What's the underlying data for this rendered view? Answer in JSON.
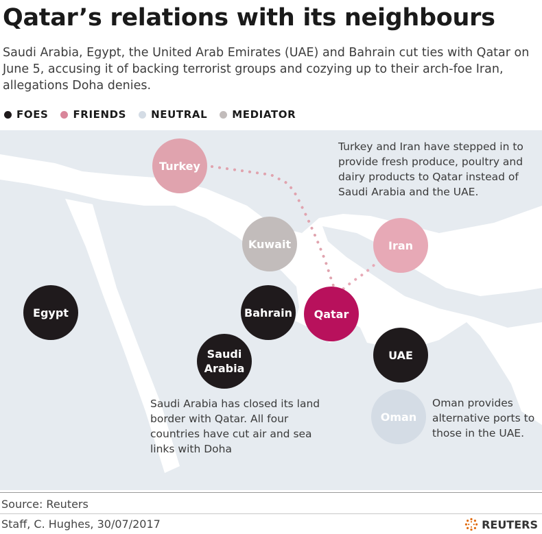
{
  "title": "Qatar’s relations with its neighbours",
  "subtitle": "Saudi Arabia, Egypt, the United Arab Emirates (UAE) and Bahrain cut ties with Qatar on June 5, accusing it of backing terrorist groups and cozying up to their arch-foe Iran, allegations Doha denies.",
  "legend": [
    {
      "label": "FOES",
      "color": "#1f1a1c"
    },
    {
      "label": "FRIENDS",
      "color": "#d9869a"
    },
    {
      "label": "NEUTRAL",
      "color": "#d4dce5"
    },
    {
      "label": "MEDIATOR",
      "color": "#c2bcbb"
    }
  ],
  "countries": {
    "turkey": {
      "name": "Turkey",
      "color": "#e0a3ae"
    },
    "kuwait": {
      "name": "Kuwait",
      "color": "#c2bcbb"
    },
    "iran": {
      "name": "Iran",
      "color": "#e7a9b6"
    },
    "egypt": {
      "name": "Egypt",
      "color": "#1f1a1c"
    },
    "bahrain": {
      "name": "Bahrain",
      "color": "#1f1a1c"
    },
    "qatar": {
      "name": "Qatar",
      "color": "#b8115c"
    },
    "saudi": {
      "name": "Saudi\nArabia",
      "color": "#1f1a1c"
    },
    "uae": {
      "name": "UAE",
      "color": "#1f1a1c"
    },
    "oman": {
      "name": "Oman",
      "color": "#d4dce5"
    }
  },
  "notes": {
    "turkey_iran": "Turkey and Iran have stepped in to provide fresh produce, poultry and dairy products to Qatar instead of Saudi Arabia and the UAE.",
    "saudi": "Saudi Arabia has closed its land border with Qatar. All four countries have cut air and sea links with Doha",
    "oman": "Oman provides alternative ports to those in the UAE."
  },
  "footer": {
    "source": "Source: Reuters",
    "credit": "Staff, C. Hughes, 30/07/2017",
    "logo": "REUTERS"
  }
}
